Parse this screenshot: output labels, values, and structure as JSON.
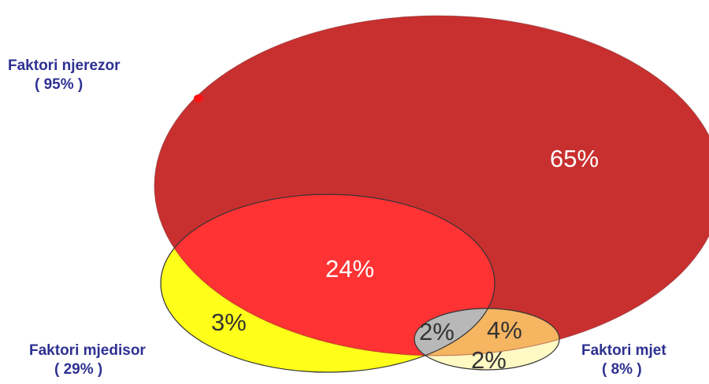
{
  "venn": {
    "sets": [
      {
        "id": "human",
        "name": "Faktori njerezor",
        "total": "( 95% )",
        "value": 95,
        "color": "#c8302f"
      },
      {
        "id": "environment",
        "name": "Faktori mjedisor",
        "total": "( 29% )",
        "value": 29,
        "color": "#ffff1a"
      },
      {
        "id": "vehicle",
        "name": "Faktori mjet",
        "total": "( 8% )",
        "value": 8,
        "color": "#ffd27a"
      }
    ],
    "regions": [
      {
        "id": "human_only",
        "label": "65%",
        "sets": [
          "human"
        ],
        "color": "#c8302f",
        "text_color": "#ffffff"
      },
      {
        "id": "human_environment",
        "label": "24%",
        "sets": [
          "human",
          "environment"
        ],
        "color": "#ff3333",
        "text_color": "#ffffff"
      },
      {
        "id": "environment_only",
        "label": "3%",
        "sets": [
          "environment"
        ],
        "color": "#ffff1a",
        "text_color": "#333333"
      },
      {
        "id": "human_environment_vehicle",
        "label": "2%",
        "sets": [
          "human",
          "environment",
          "vehicle"
        ],
        "color": "#b8b8b8",
        "text_color": "#333333"
      },
      {
        "id": "human_vehicle",
        "label": "4%",
        "sets": [
          "human",
          "vehicle"
        ],
        "color": "#f5b561",
        "text_color": "#333333"
      },
      {
        "id": "vehicle_only",
        "label": "2%",
        "sets": [
          "vehicle"
        ],
        "color": "#fff9c4",
        "text_color": "#333333"
      }
    ]
  }
}
